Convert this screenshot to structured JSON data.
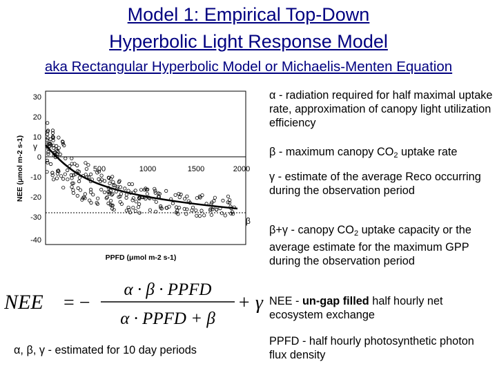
{
  "title_line1": "Model 1: Empirical Top-Down",
  "title_line2": "Hyperbolic Light Response Model",
  "subtitle": "aka Rectangular Hyperbolic Model or Michaelis-Menten Equation",
  "plot": {
    "y_ticks": [
      "30",
      "20",
      "10",
      "0",
      "-10",
      "-20",
      "-30",
      "-40"
    ],
    "x_ticks": [
      "500",
      "1000",
      "1500",
      "2000"
    ],
    "y_label": "NEE (μmol m-2 s-1)",
    "x_label": "PPFD (μmol m-2 s-1)",
    "gamma_marker": "γ",
    "beta_marker": "β"
  },
  "descriptions": {
    "alpha_symbol": "α",
    "alpha_text": " - radiation required for half maximal uptake rate, approximation of canopy light utilization efficiency",
    "beta_symbol": "β",
    "beta_text_a": " - maximum canopy CO",
    "beta_sub": "2",
    "beta_text_b": " uptake rate",
    "gamma_symbol": "γ",
    "gamma_text": " - estimate of the average Reco occurring during the observation period",
    "bg_symbol": "β+γ",
    "bg_text_a": " - canopy CO",
    "bg_sub": "2",
    "bg_text_b": " uptake capacity or the average estimate for the maximum GPP during the observation period",
    "nee_term": "NEE",
    "nee_dash": " - ",
    "nee_bold": "un-gap filled",
    "nee_text": " half hourly net ecosystem exchange",
    "ppfd_text": "PPFD - half hourly photosynthetic photon flux density"
  },
  "formula": {
    "lhs": "NEE",
    "eq": "= −",
    "numerator": "α · β · PPFD",
    "denominator": "α · PPFD + β",
    "plus_gamma": "+ γ"
  },
  "period_note": "α, β, γ - estimated for 10 day periods"
}
